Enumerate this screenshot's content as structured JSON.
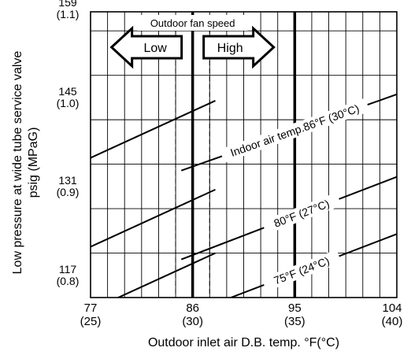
{
  "chart_data": {
    "type": "line",
    "xlabel": "Outdoor inlet air D.B. temp. °F(°C)",
    "ylabel": "Low pressure at wide tube service valve psig (MPaG)",
    "ylabel_line1": "Low pressure at wide tube service valve",
    "ylabel_line2": "psig (MPaG)",
    "xlim": [
      77,
      104
    ],
    "ylim": [
      114,
      159
    ],
    "x_ticks": [
      {
        "value": 77,
        "label": "77",
        "sub": "(25)"
      },
      {
        "value": 86,
        "label": "86",
        "sub": "(30)"
      },
      {
        "value": 95,
        "label": "95",
        "sub": "(35)"
      },
      {
        "value": 104,
        "label": "104",
        "sub": "(40)"
      }
    ],
    "y_ticks": [
      {
        "value": 117,
        "label": "117",
        "sub": "(0.8)"
      },
      {
        "value": 131,
        "label": "131",
        "sub": "(0.9)"
      },
      {
        "value": 145,
        "label": "145",
        "sub": "(1.0)"
      },
      {
        "value": 159,
        "label": "159",
        "sub": "(1.1)"
      }
    ],
    "grid": true,
    "fan_speed": {
      "title": "Outdoor fan speed",
      "low_label": "Low",
      "high_label": "High",
      "switch_x": 86,
      "band": [
        84.5,
        87.5
      ]
    },
    "reference_line_x": 95,
    "series": [
      {
        "name": "Indoor air temp.86°F (30°C)",
        "low_fan": {
          "x": [
            77,
            88
          ],
          "y": [
            136,
            145
          ]
        },
        "high_fan": {
          "x": [
            85,
            104
          ],
          "y": [
            134,
            146
          ]
        }
      },
      {
        "name": "80°F (27°C)",
        "low_fan": {
          "x": [
            77,
            88
          ],
          "y": [
            122,
            131
          ]
        },
        "high_fan": {
          "x": [
            85,
            104
          ],
          "y": [
            120,
            133
          ]
        }
      },
      {
        "name": "75°F (24°C)",
        "low_fan": {
          "x": [
            77,
            88
          ],
          "y": [
            112,
            121
          ]
        },
        "high_fan": {
          "x": [
            85,
            104
          ],
          "y": [
            111,
            124
          ]
        }
      }
    ],
    "marker_point": {
      "x": 95,
      "y": 127
    }
  }
}
